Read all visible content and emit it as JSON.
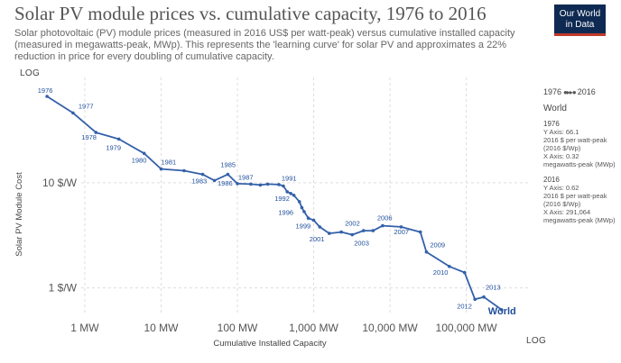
{
  "header": {
    "title": "Solar PV module prices vs. cumulative capacity, 1976 to 2016",
    "subtitle": "Solar photovoltaic (PV) module prices (measured in 2016 US$ per watt-peak) versus cumulative installed capacity (measured in megawatts-peak, MWp). This represents the 'learning curve' for solar PV and approximates a 22% reduction in price for every doubling of cumulative capacity.",
    "logo_line1": "Our World",
    "logo_line2": "in Data"
  },
  "scale_labels": {
    "y": "LOG",
    "x": "LOG"
  },
  "colors": {
    "series": "#3360a9",
    "label": "#1f4e9b",
    "grid": "#dddddd",
    "logo_bg": "#0f2a52",
    "logo_accent": "#c0392b"
  },
  "chart_data": {
    "type": "line",
    "title": "Solar PV module prices vs. cumulative capacity, 1976 to 2016",
    "xlabel": "Cumulative Installed Capacity",
    "ylabel": "Solar PV Module Cost",
    "x_scale": "log",
    "y_scale": "log",
    "xlim": [
      0.23,
      700000
    ],
    "ylim": [
      0.55,
      100
    ],
    "grid": true,
    "x_ticks": [
      {
        "value": 1,
        "label": "1 MW"
      },
      {
        "value": 10,
        "label": "10 MW"
      },
      {
        "value": 100,
        "label": "100 MW"
      },
      {
        "value": 1000,
        "label": "1,000 MW"
      },
      {
        "value": 10000,
        "label": "10,000 MW"
      },
      {
        "value": 100000,
        "label": "100,000 MW"
      }
    ],
    "y_ticks": [
      {
        "value": 1,
        "label": "1 $/W"
      },
      {
        "value": 10,
        "label": "10 $/W"
      }
    ],
    "series": [
      {
        "name": "World",
        "points": [
          {
            "year": 1976,
            "x": 0.32,
            "y": 66.1
          },
          {
            "year": 1977,
            "x": 0.7,
            "y": 46
          },
          {
            "year": 1978,
            "x": 1.4,
            "y": 30
          },
          {
            "year": 1979,
            "x": 2.8,
            "y": 26
          },
          {
            "year": 1980,
            "x": 6,
            "y": 19
          },
          {
            "year": 1981,
            "x": 10,
            "y": 13.5
          },
          {
            "year": 1982,
            "x": 20,
            "y": 13
          },
          {
            "year": 1983,
            "x": 35,
            "y": 12
          },
          {
            "year": 1984,
            "x": 50,
            "y": 10.5
          },
          {
            "year": 1985,
            "x": 75,
            "y": 12
          },
          {
            "year": 1986,
            "x": 100,
            "y": 9.8
          },
          {
            "year": 1987,
            "x": 150,
            "y": 9.7
          },
          {
            "year": 1988,
            "x": 200,
            "y": 9.5
          },
          {
            "year": 1989,
            "x": 250,
            "y": 9.7
          },
          {
            "year": 1990,
            "x": 350,
            "y": 9.6
          },
          {
            "year": 1991,
            "x": 400,
            "y": 9.3
          },
          {
            "year": 1992,
            "x": 450,
            "y": 8.2
          },
          {
            "year": 1993,
            "x": 500,
            "y": 7.9
          },
          {
            "year": 1994,
            "x": 550,
            "y": 7.6
          },
          {
            "year": 1995,
            "x": 650,
            "y": 6.6
          },
          {
            "year": 1996,
            "x": 700,
            "y": 5.8
          },
          {
            "year": 1997,
            "x": 750,
            "y": 5.3
          },
          {
            "year": 1998,
            "x": 850,
            "y": 4.6
          },
          {
            "year": 1999,
            "x": 1000,
            "y": 4.4
          },
          {
            "year": 2000,
            "x": 1200,
            "y": 3.8
          },
          {
            "year": 2001,
            "x": 1600,
            "y": 3.3
          },
          {
            "year": 2002,
            "x": 2300,
            "y": 3.4
          },
          {
            "year": 2003,
            "x": 3200,
            "y": 3.2
          },
          {
            "year": 2004,
            "x": 4500,
            "y": 3.5
          },
          {
            "year": 2005,
            "x": 6000,
            "y": 3.5
          },
          {
            "year": 2006,
            "x": 8000,
            "y": 3.9
          },
          {
            "year": 2007,
            "x": 14000,
            "y": 3.8
          },
          {
            "year": 2008,
            "x": 25000,
            "y": 3.4
          },
          {
            "year": 2009,
            "x": 30000,
            "y": 2.2
          },
          {
            "year": 2010,
            "x": 60000,
            "y": 1.6
          },
          {
            "year": 2011,
            "x": 95000,
            "y": 1.4
          },
          {
            "year": 2012,
            "x": 130000,
            "y": 0.78
          },
          {
            "year": 2013,
            "x": 170000,
            "y": 0.82
          },
          {
            "year": 2016,
            "x": 291064,
            "y": 0.62
          }
        ]
      }
    ],
    "labeled_years": [
      1976,
      1977,
      1978,
      1979,
      1980,
      1981,
      1983,
      1985,
      1986,
      1987,
      1991,
      1992,
      1996,
      1999,
      2001,
      2002,
      2003,
      2006,
      2007,
      2009,
      2010,
      2012,
      2013
    ],
    "end_label": "World"
  },
  "right_panel": {
    "range_start": "1976",
    "range_end": "2016",
    "entity": "World",
    "blocks": [
      {
        "year": "1976",
        "lines": [
          "Y Axis: 66.1",
          "2016 $ per watt-peak (2016 $/Wp)",
          "X Axis: 0.32",
          "megawatts-peak (MWp)"
        ]
      },
      {
        "year": "2016",
        "lines": [
          "Y Axis: 0.62",
          "2016 $ per watt-peak (2016 $/Wp)",
          "X Axis: 291,064",
          "megawatts-peak (MWp)"
        ]
      }
    ]
  }
}
